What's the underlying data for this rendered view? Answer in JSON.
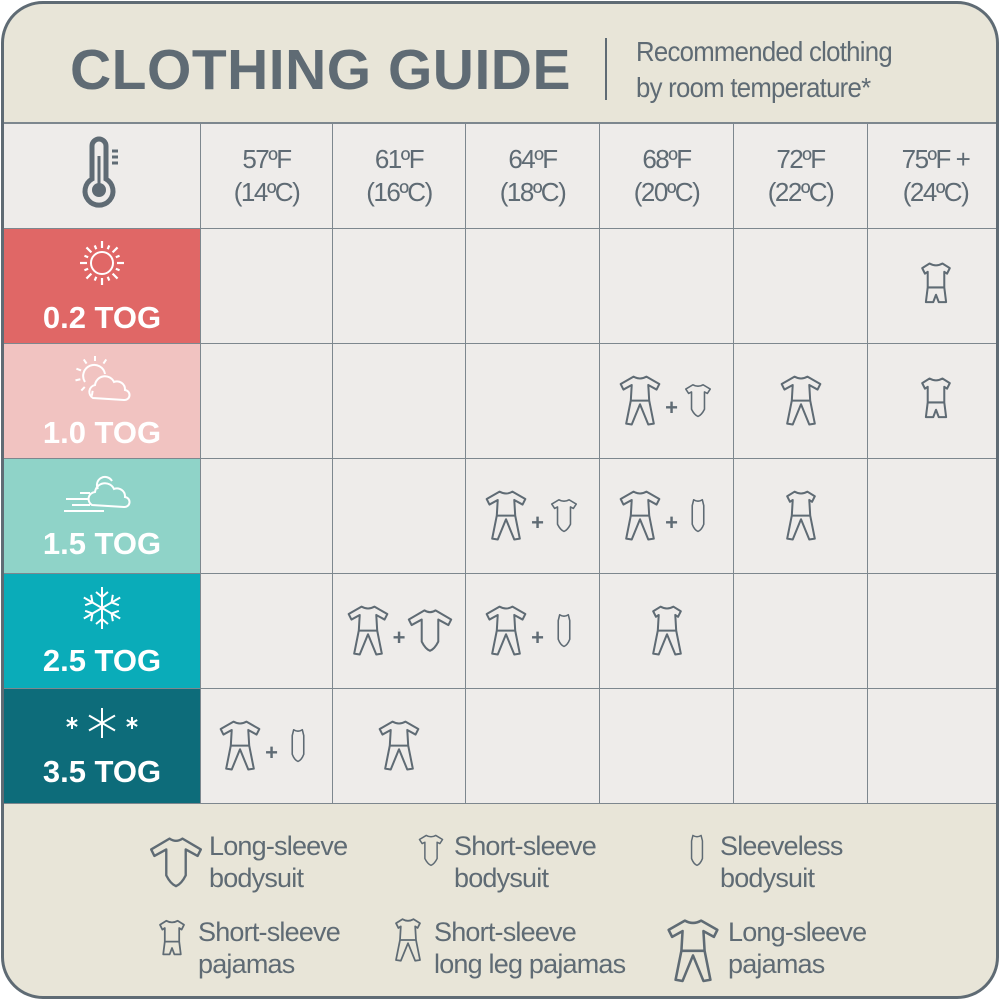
{
  "header": {
    "title": "CLOTHING GUIDE",
    "subtitle_line1": "Recommended clothing",
    "subtitle_line2": "by room temperature*"
  },
  "temperature_icon": "thermometer-icon",
  "columns": [
    {
      "f": "57ºF",
      "c": "(14ºC)"
    },
    {
      "f": "61ºF",
      "c": "(16ºC)"
    },
    {
      "f": "64ºF",
      "c": "(18ºC)"
    },
    {
      "f": "68ºF",
      "c": "(20ºC)"
    },
    {
      "f": "72ºF",
      "c": "(22ºC)"
    },
    {
      "f": "75ºF +",
      "c": "(24ºC)"
    }
  ],
  "rows": [
    {
      "label": "0.2 TOG",
      "icon": "sun-icon",
      "color": "#e06766",
      "cells": [
        [],
        [],
        [],
        [],
        [],
        [
          "ss-pajamas"
        ]
      ]
    },
    {
      "label": "1.0 TOG",
      "icon": "sun-cloud-icon",
      "color": "#f1c3c1",
      "cells": [
        [],
        [],
        [],
        [
          "ls-pajamas",
          "ss-bodysuit"
        ],
        [
          "ls-pajamas"
        ],
        [
          "ss-pajamas"
        ]
      ]
    },
    {
      "label": "1.5 TOG",
      "icon": "wind-cloud-icon",
      "color": "#8fd3c8",
      "cells": [
        [],
        [],
        [
          "ls-pajamas",
          "ss-bodysuit"
        ],
        [
          "ls-pajamas",
          "sleeveless-bodysuit"
        ],
        [
          "ss-longleg-pajamas"
        ],
        []
      ]
    },
    {
      "label": "2.5 TOG",
      "icon": "snowflake-icon",
      "color": "#0aacb9",
      "cells": [
        [],
        [
          "ls-pajamas",
          "ls-bodysuit"
        ],
        [
          "ls-pajamas",
          "sleeveless-bodysuit"
        ],
        [
          "ss-longleg-pajamas"
        ],
        [],
        []
      ]
    },
    {
      "label": "3.5 TOG",
      "icon": "snowflakes-icon",
      "color": "#0d6c7a",
      "cells": [
        [
          "ls-pajamas",
          "sleeveless-bodysuit"
        ],
        [
          "ls-pajamas"
        ],
        [],
        [],
        [],
        []
      ]
    }
  ],
  "plus_sign": "+",
  "legend": [
    {
      "icon": "ls-bodysuit",
      "line1": "Long-sleeve",
      "line2": "bodysuit"
    },
    {
      "icon": "ss-bodysuit",
      "line1": "Short-sleeve",
      "line2": "bodysuit"
    },
    {
      "icon": "sleeveless-bodysuit",
      "line1": "Sleeveless",
      "line2": "bodysuit"
    },
    {
      "icon": "ss-pajamas",
      "line1": "Short-sleeve",
      "line2": "pajamas"
    },
    {
      "icon": "ss-longleg-pajamas",
      "line1": "Short-sleeve",
      "line2": "long leg pajamas"
    },
    {
      "icon": "ls-pajamas",
      "line1": "Long-sleeve",
      "line2": "pajamas"
    }
  ],
  "colors": {
    "border": "#5f6b74",
    "header_bg": "#e8e5d8",
    "cell_bg": "#eeecea"
  }
}
